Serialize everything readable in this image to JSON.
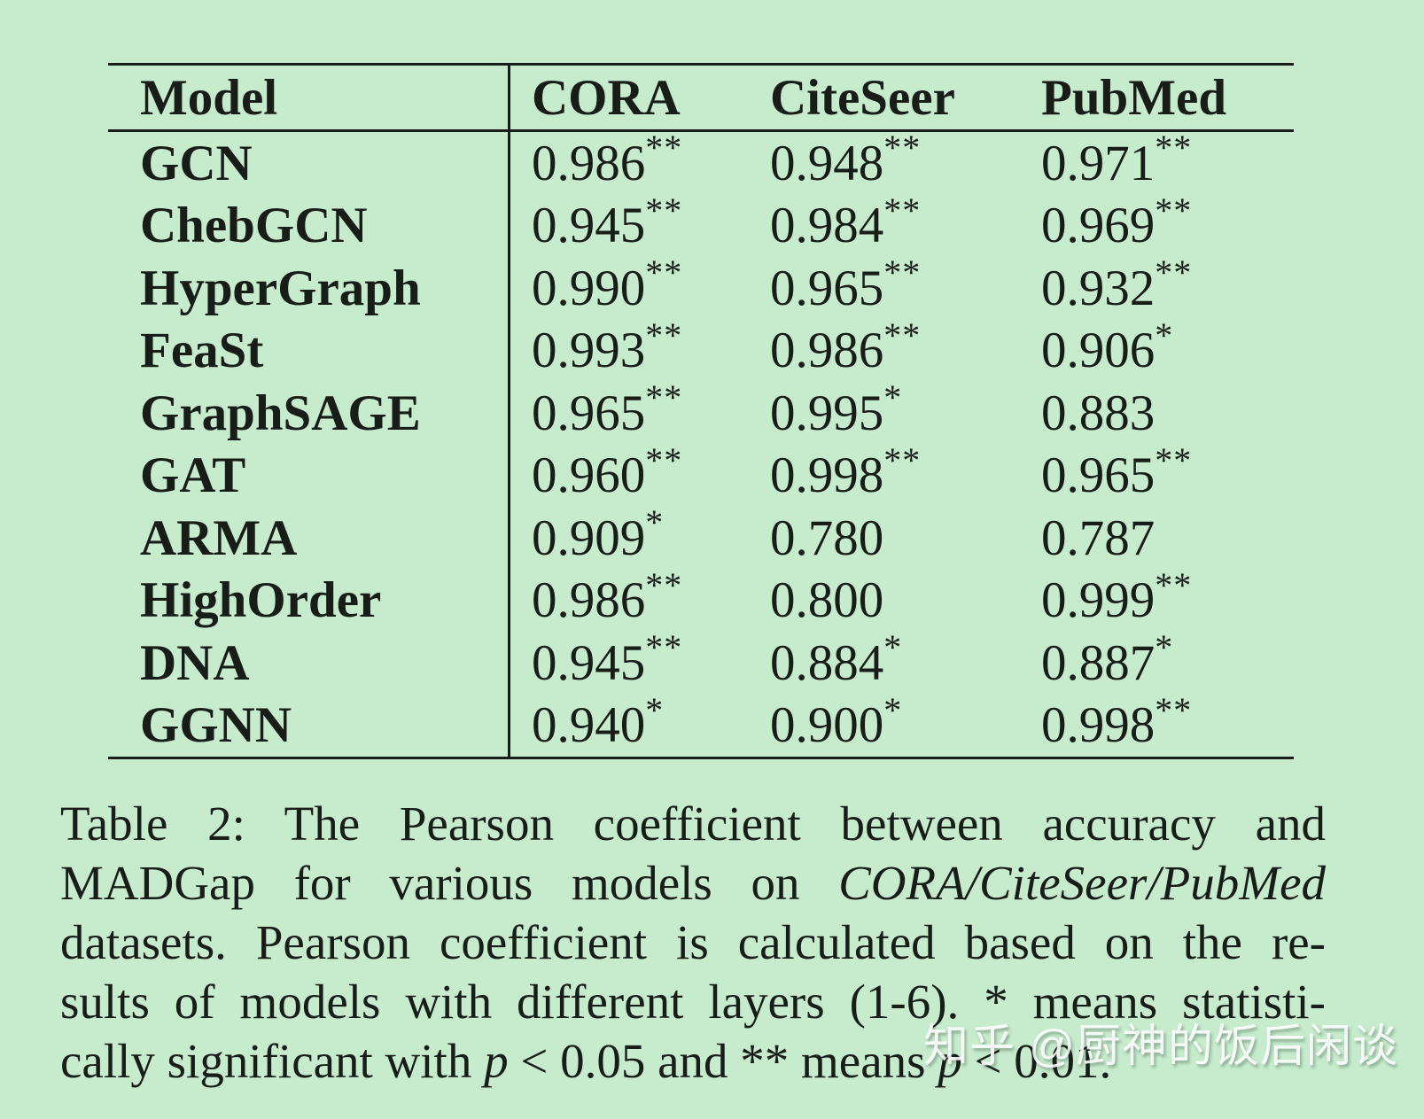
{
  "page": {
    "background": "#c7ebcd",
    "ink": "#181d18"
  },
  "table": {
    "headers": [
      "Model",
      "CORA",
      "CiteSeer",
      "PubMed"
    ],
    "rows": [
      {
        "model": "GCN",
        "values": [
          {
            "v": "0.986",
            "sig": "**"
          },
          {
            "v": "0.948",
            "sig": "**"
          },
          {
            "v": "0.971",
            "sig": "**"
          }
        ]
      },
      {
        "model": "ChebGCN",
        "values": [
          {
            "v": "0.945",
            "sig": "**"
          },
          {
            "v": "0.984",
            "sig": "**"
          },
          {
            "v": "0.969",
            "sig": "**"
          }
        ]
      },
      {
        "model": "HyperGraph",
        "values": [
          {
            "v": "0.990",
            "sig": "**"
          },
          {
            "v": "0.965",
            "sig": "**"
          },
          {
            "v": "0.932",
            "sig": "**"
          }
        ]
      },
      {
        "model": "FeaSt",
        "values": [
          {
            "v": "0.993",
            "sig": "**"
          },
          {
            "v": "0.986",
            "sig": "**"
          },
          {
            "v": "0.906",
            "sig": "*"
          }
        ]
      },
      {
        "model": "GraphSAGE",
        "values": [
          {
            "v": "0.965",
            "sig": "**"
          },
          {
            "v": "0.995",
            "sig": "*"
          },
          {
            "v": "0.883",
            "sig": ""
          }
        ]
      },
      {
        "model": "GAT",
        "values": [
          {
            "v": "0.960",
            "sig": "**"
          },
          {
            "v": "0.998",
            "sig": "**"
          },
          {
            "v": "0.965",
            "sig": "**"
          }
        ]
      },
      {
        "model": "ARMA",
        "values": [
          {
            "v": "0.909",
            "sig": "*"
          },
          {
            "v": "0.780",
            "sig": ""
          },
          {
            "v": "0.787",
            "sig": ""
          }
        ]
      },
      {
        "model": "HighOrder",
        "values": [
          {
            "v": "0.986",
            "sig": "**"
          },
          {
            "v": "0.800",
            "sig": ""
          },
          {
            "v": "0.999",
            "sig": "**"
          }
        ]
      },
      {
        "model": "DNA",
        "values": [
          {
            "v": "0.945",
            "sig": "**"
          },
          {
            "v": "0.884",
            "sig": "*"
          },
          {
            "v": "0.887",
            "sig": "*"
          }
        ]
      },
      {
        "model": "GGNN",
        "values": [
          {
            "v": "0.940",
            "sig": "*"
          },
          {
            "v": "0.900",
            "sig": "*"
          },
          {
            "v": "0.998",
            "sig": "**"
          }
        ]
      }
    ]
  },
  "caption": {
    "lines": [
      {
        "justify": true,
        "segments": [
          {
            "text": "Table 2: The Pearson coefficient between accuracy and",
            "italic": false
          }
        ]
      },
      {
        "justify": true,
        "segments": [
          {
            "text": "MADGap for various models on ",
            "italic": false
          },
          {
            "text": "CORA/CiteSeer/PubMed",
            "italic": true
          }
        ]
      },
      {
        "justify": true,
        "segments": [
          {
            "text": "datasets. Pearson coefficient is calculated based on the re-",
            "italic": false
          }
        ]
      },
      {
        "justify": true,
        "segments": [
          {
            "text": "sults of models with different layers (1-6). * means statisti-",
            "italic": false
          }
        ]
      },
      {
        "justify": false,
        "segments": [
          {
            "text": "cally significant with ",
            "italic": false
          },
          {
            "text": "p",
            "italic": true
          },
          {
            "text": " < 0.05 and ** means ",
            "italic": false
          },
          {
            "text": "p",
            "italic": true
          },
          {
            "text": " < 0.01.",
            "italic": false
          }
        ]
      }
    ]
  },
  "watermark": {
    "text": "知乎 @厨神的饭后闲谈",
    "color": "#ffffff"
  }
}
